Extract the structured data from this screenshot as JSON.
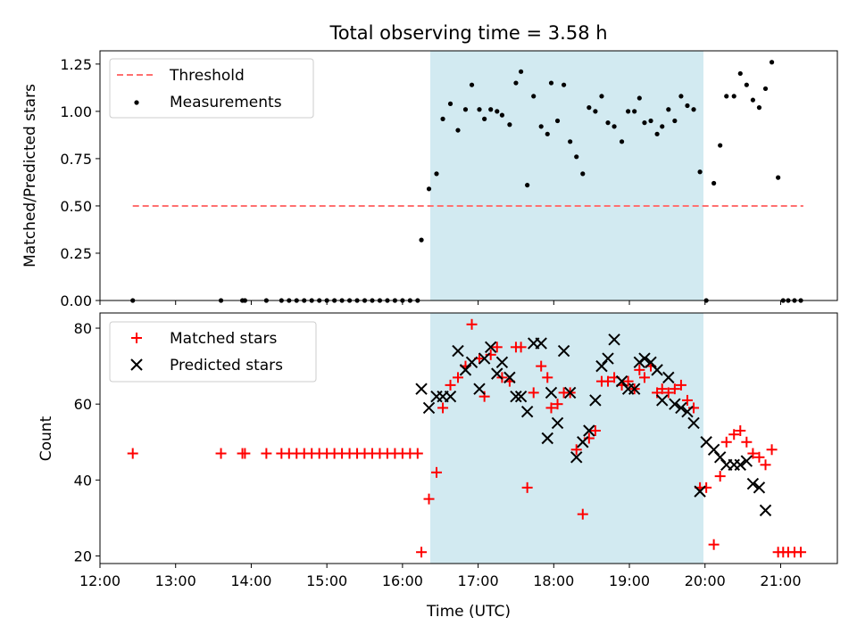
{
  "figure_title": "Total observing time = 3.58 h",
  "chart_data": [
    {
      "type": "scatter",
      "panel": "top",
      "ylabel": "Matched/Predicted stars",
      "xlabel": "",
      "x_unit": "time of day (UTC, HH:MM)",
      "xlim": [
        "12:00",
        "21:45"
      ],
      "ylim": [
        0,
        1.32
      ],
      "yticks": [
        0.0,
        0.25,
        0.5,
        0.75,
        1.0,
        1.25
      ],
      "ytick_labels": [
        "0.00",
        "0.25",
        "0.50",
        "0.75",
        "1.00",
        "1.25"
      ],
      "shaded_interval": {
        "start": "16:20",
        "end": "19:56",
        "color": "#add8e6"
      },
      "legend_position": "top-left",
      "threshold": {
        "name": "Threshold",
        "value": 0.5,
        "x_start": "12:26",
        "x_end": "21:18",
        "color": "#ff7070",
        "style": "dashed"
      },
      "series": [
        {
          "name": "Measurements",
          "color": "#000000",
          "marker": "dot",
          "points": [
            [
              "12:26",
              0
            ],
            [
              "13:36",
              0
            ],
            [
              "13:53",
              0
            ],
            [
              "13:55",
              0
            ],
            [
              "14:12",
              0
            ],
            [
              "14:24",
              0
            ],
            [
              "14:30",
              0
            ],
            [
              "14:36",
              0
            ],
            [
              "14:42",
              0
            ],
            [
              "14:48",
              0
            ],
            [
              "14:54",
              0
            ],
            [
              "15:00",
              0
            ],
            [
              "15:06",
              0
            ],
            [
              "15:12",
              0
            ],
            [
              "15:18",
              0
            ],
            [
              "15:24",
              0
            ],
            [
              "15:30",
              0
            ],
            [
              "15:36",
              0
            ],
            [
              "15:42",
              0
            ],
            [
              "15:48",
              0
            ],
            [
              "15:54",
              0
            ],
            [
              "16:00",
              0
            ],
            [
              "16:06",
              0
            ],
            [
              "16:12",
              0
            ],
            [
              "16:15",
              0.32
            ],
            [
              "16:21",
              0.59
            ],
            [
              "16:27",
              0.67
            ],
            [
              "16:32",
              0.96
            ],
            [
              "16:38",
              1.04
            ],
            [
              "16:44",
              0.9
            ],
            [
              "16:50",
              1.01
            ],
            [
              "16:55",
              1.14
            ],
            [
              "17:01",
              1.01
            ],
            [
              "17:05",
              0.96
            ],
            [
              "17:10",
              1.01
            ],
            [
              "17:15",
              1.0
            ],
            [
              "17:19",
              0.98
            ],
            [
              "17:25",
              0.93
            ],
            [
              "17:30",
              1.15
            ],
            [
              "17:34",
              1.21
            ],
            [
              "17:39",
              0.61
            ],
            [
              "17:44",
              1.08
            ],
            [
              "17:50",
              0.92
            ],
            [
              "17:55",
              0.88
            ],
            [
              "17:58",
              1.15
            ],
            [
              "18:03",
              0.95
            ],
            [
              "18:08",
              1.14
            ],
            [
              "18:13",
              0.84
            ],
            [
              "18:18",
              0.76
            ],
            [
              "18:23",
              0.67
            ],
            [
              "18:28",
              1.02
            ],
            [
              "18:33",
              1.0
            ],
            [
              "18:38",
              1.08
            ],
            [
              "18:43",
              0.94
            ],
            [
              "18:48",
              0.92
            ],
            [
              "18:54",
              0.84
            ],
            [
              "18:59",
              1.0
            ],
            [
              "19:04",
              1.0
            ],
            [
              "19:08",
              1.07
            ],
            [
              "19:12",
              0.94
            ],
            [
              "19:17",
              0.95
            ],
            [
              "19:22",
              0.88
            ],
            [
              "19:26",
              0.92
            ],
            [
              "19:31",
              1.01
            ],
            [
              "19:36",
              0.95
            ],
            [
              "19:41",
              1.08
            ],
            [
              "19:46",
              1.03
            ],
            [
              "19:51",
              1.01
            ],
            [
              "19:56",
              0.68
            ],
            [
              "20:01",
              0
            ],
            [
              "20:07",
              0.62
            ],
            [
              "20:12",
              0.82
            ],
            [
              "20:17",
              1.08
            ],
            [
              "20:23",
              1.08
            ],
            [
              "20:28",
              1.2
            ],
            [
              "20:33",
              1.14
            ],
            [
              "20:38",
              1.06
            ],
            [
              "20:43",
              1.02
            ],
            [
              "20:48",
              1.12
            ],
            [
              "20:53",
              1.26
            ],
            [
              "20:58",
              0.65
            ],
            [
              "21:02",
              0
            ],
            [
              "21:06",
              0
            ],
            [
              "21:11",
              0
            ],
            [
              "21:16",
              0
            ]
          ]
        }
      ]
    },
    {
      "type": "scatter",
      "panel": "bottom",
      "ylabel": "Count",
      "xlabel": "Time (UTC)",
      "x_unit": "time of day (UTC, HH:MM)",
      "xlim": [
        "12:00",
        "21:45"
      ],
      "ylim": [
        18,
        84
      ],
      "yticks": [
        20,
        40,
        60,
        80
      ],
      "ytick_labels": [
        "20",
        "40",
        "60",
        "80"
      ],
      "xticks": [
        "12:00",
        "13:00",
        "14:00",
        "15:00",
        "16:00",
        "17:00",
        "18:00",
        "19:00",
        "20:00",
        "21:00"
      ],
      "xtick_labels": [
        "12:00",
        "13:00",
        "14:00",
        "15:00",
        "16:00",
        "17:00",
        "18:00",
        "19:00",
        "20:00",
        "21:00"
      ],
      "shaded_interval": {
        "start": "16:20",
        "end": "19:56",
        "color": "#add8e6"
      },
      "legend_position": "top-left",
      "series": [
        {
          "name": "Matched stars",
          "color": "#ff0000",
          "marker": "plus",
          "points": [
            [
              "12:26",
              47
            ],
            [
              "13:36",
              47
            ],
            [
              "13:53",
              47
            ],
            [
              "13:55",
              47
            ],
            [
              "14:12",
              47
            ],
            [
              "14:24",
              47
            ],
            [
              "14:30",
              47
            ],
            [
              "14:36",
              47
            ],
            [
              "14:42",
              47
            ],
            [
              "14:48",
              47
            ],
            [
              "14:54",
              47
            ],
            [
              "15:00",
              47
            ],
            [
              "15:06",
              47
            ],
            [
              "15:12",
              47
            ],
            [
              "15:18",
              47
            ],
            [
              "15:24",
              47
            ],
            [
              "15:30",
              47
            ],
            [
              "15:36",
              47
            ],
            [
              "15:42",
              47
            ],
            [
              "15:48",
              47
            ],
            [
              "15:54",
              47
            ],
            [
              "16:00",
              47
            ],
            [
              "16:06",
              47
            ],
            [
              "16:12",
              47
            ],
            [
              "16:15",
              21
            ],
            [
              "16:21",
              35
            ],
            [
              "16:27",
              42
            ],
            [
              "16:32",
              59
            ],
            [
              "16:38",
              65
            ],
            [
              "16:44",
              67
            ],
            [
              "16:50",
              70
            ],
            [
              "16:55",
              81
            ],
            [
              "17:01",
              72
            ],
            [
              "17:05",
              62
            ],
            [
              "17:10",
              73
            ],
            [
              "17:15",
              75
            ],
            [
              "17:19",
              67
            ],
            [
              "17:25",
              66
            ],
            [
              "17:30",
              75
            ],
            [
              "17:34",
              75
            ],
            [
              "17:39",
              38
            ],
            [
              "17:44",
              63
            ],
            [
              "17:50",
              70
            ],
            [
              "17:55",
              67
            ],
            [
              "17:58",
              59
            ],
            [
              "18:03",
              60
            ],
            [
              "18:08",
              63
            ],
            [
              "18:13",
              63
            ],
            [
              "18:18",
              48
            ],
            [
              "18:23",
              31
            ],
            [
              "18:28",
              51
            ],
            [
              "18:33",
              53
            ],
            [
              "18:38",
              66
            ],
            [
              "18:43",
              66
            ],
            [
              "18:48",
              67
            ],
            [
              "18:54",
              65
            ],
            [
              "18:59",
              66
            ],
            [
              "19:04",
              64
            ],
            [
              "19:08",
              69
            ],
            [
              "19:12",
              67
            ],
            [
              "19:17",
              70
            ],
            [
              "19:22",
              63
            ],
            [
              "19:26",
              64
            ],
            [
              "19:31",
              63
            ],
            [
              "19:36",
              64
            ],
            [
              "19:41",
              65
            ],
            [
              "19:46",
              61
            ],
            [
              "19:51",
              59
            ],
            [
              "19:56",
              38
            ],
            [
              "20:01",
              38
            ],
            [
              "20:07",
              23
            ],
            [
              "20:12",
              41
            ],
            [
              "20:17",
              50
            ],
            [
              "20:23",
              52
            ],
            [
              "20:28",
              53
            ],
            [
              "20:33",
              50
            ],
            [
              "20:38",
              47
            ],
            [
              "20:43",
              46
            ],
            [
              "20:48",
              44
            ],
            [
              "20:53",
              48
            ],
            [
              "20:58",
              21
            ],
            [
              "21:02",
              21
            ],
            [
              "21:06",
              21
            ],
            [
              "21:11",
              21
            ],
            [
              "21:16",
              21
            ]
          ]
        },
        {
          "name": "Predicted stars",
          "color": "#000000",
          "marker": "cross",
          "points": [
            [
              "16:15",
              64
            ],
            [
              "16:21",
              59
            ],
            [
              "16:27",
              62
            ],
            [
              "16:32",
              62
            ],
            [
              "16:38",
              62
            ],
            [
              "16:44",
              74
            ],
            [
              "16:50",
              69
            ],
            [
              "16:55",
              71
            ],
            [
              "17:01",
              64
            ],
            [
              "17:05",
              72
            ],
            [
              "17:10",
              75
            ],
            [
              "17:15",
              68
            ],
            [
              "17:19",
              71
            ],
            [
              "17:25",
              67
            ],
            [
              "17:30",
              62
            ],
            [
              "17:34",
              62
            ],
            [
              "17:39",
              58
            ],
            [
              "17:44",
              76
            ],
            [
              "17:50",
              76
            ],
            [
              "17:55",
              51
            ],
            [
              "17:58",
              63
            ],
            [
              "18:03",
              55
            ],
            [
              "18:08",
              74
            ],
            [
              "18:13",
              63
            ],
            [
              "18:18",
              46
            ],
            [
              "18:23",
              50
            ],
            [
              "18:28",
              53
            ],
            [
              "18:33",
              61
            ],
            [
              "18:38",
              70
            ],
            [
              "18:43",
              72
            ],
            [
              "18:48",
              77
            ],
            [
              "18:54",
              66
            ],
            [
              "18:59",
              64
            ],
            [
              "19:04",
              64
            ],
            [
              "19:08",
              71
            ],
            [
              "19:12",
              72
            ],
            [
              "19:17",
              71
            ],
            [
              "19:22",
              69
            ],
            [
              "19:26",
              61
            ],
            [
              "19:31",
              67
            ],
            [
              "19:36",
              60
            ],
            [
              "19:41",
              59
            ],
            [
              "19:46",
              58
            ],
            [
              "19:51",
              55
            ],
            [
              "19:56",
              37
            ],
            [
              "20:01",
              50
            ],
            [
              "20:07",
              48
            ],
            [
              "20:12",
              46
            ],
            [
              "20:17",
              44
            ],
            [
              "20:23",
              44
            ],
            [
              "20:28",
              44
            ],
            [
              "20:33",
              45
            ],
            [
              "20:38",
              39
            ],
            [
              "20:43",
              38
            ],
            [
              "20:48",
              32
            ]
          ]
        }
      ]
    }
  ]
}
